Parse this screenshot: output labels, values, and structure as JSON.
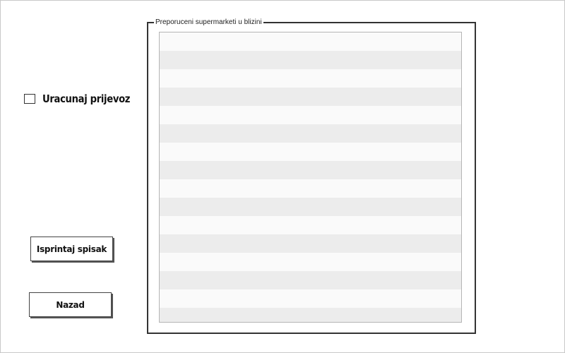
{
  "options": {
    "include_transport_label": "Uracunaj prijevoz",
    "include_transport_checked": false
  },
  "buttons": {
    "print_label": "Isprintaj spisak",
    "back_label": "Nazad"
  },
  "supermarkets": {
    "legend": "Preporuceni supermarketi u blizini",
    "rows": []
  }
}
